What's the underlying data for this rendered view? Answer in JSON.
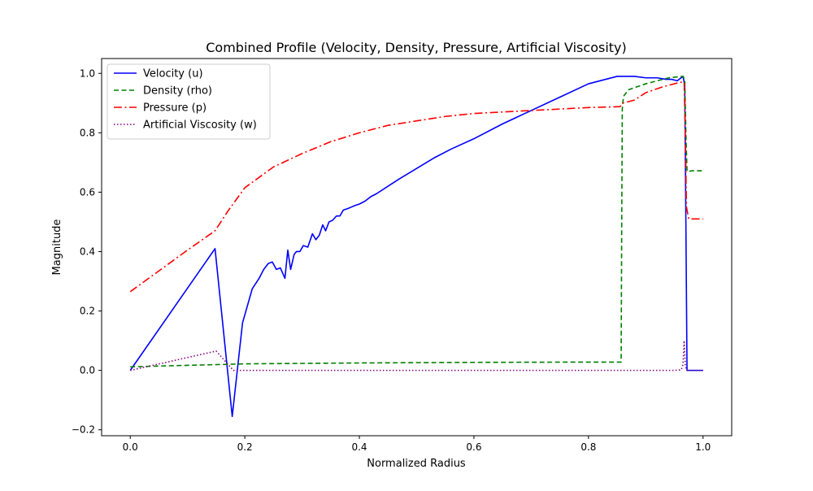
{
  "chart_data": {
    "type": "line",
    "title": "Combined Profile (Velocity, Density, Pressure, Artificial Viscosity)",
    "xlabel": "Normalized Radius",
    "ylabel": "Magnitude",
    "xlim": [
      -0.05,
      1.05
    ],
    "ylim": [
      -0.22,
      1.05
    ],
    "xticks": [
      0.0,
      0.2,
      0.4,
      0.6,
      0.8,
      1.0
    ],
    "xtick_labels": [
      "0.0",
      "0.2",
      "0.4",
      "0.6",
      "0.8",
      "1.0"
    ],
    "yticks": [
      -0.2,
      0.0,
      0.2,
      0.4,
      0.6,
      0.8,
      1.0
    ],
    "ytick_labels": [
      "−0.2",
      "0.0",
      "0.2",
      "0.4",
      "0.6",
      "0.8",
      "1.0"
    ],
    "grid": false,
    "legend_position": "top-left",
    "series": [
      {
        "name": "Velocity (u)",
        "color": "#0000ff",
        "style": "solid",
        "x": [
          0.0,
          0.148,
          0.178,
          0.196,
          0.213,
          0.225,
          0.233,
          0.241,
          0.248,
          0.255,
          0.262,
          0.27,
          0.275,
          0.28,
          0.286,
          0.29,
          0.296,
          0.302,
          0.31,
          0.318,
          0.324,
          0.33,
          0.336,
          0.341,
          0.347,
          0.353,
          0.36,
          0.366,
          0.372,
          0.38,
          0.386,
          0.392,
          0.4,
          0.41,
          0.42,
          0.43,
          0.45,
          0.47,
          0.5,
          0.53,
          0.56,
          0.6,
          0.65,
          0.7,
          0.75,
          0.8,
          0.85,
          0.88,
          0.9,
          0.92,
          0.935,
          0.945,
          0.955,
          0.965,
          0.968,
          0.97,
          0.972,
          0.975,
          1.0
        ],
        "y": [
          0.0,
          0.41,
          -0.155,
          0.16,
          0.275,
          0.31,
          0.34,
          0.36,
          0.365,
          0.34,
          0.345,
          0.31,
          0.405,
          0.34,
          0.39,
          0.4,
          0.4,
          0.42,
          0.415,
          0.46,
          0.44,
          0.455,
          0.49,
          0.47,
          0.5,
          0.505,
          0.52,
          0.52,
          0.54,
          0.545,
          0.55,
          0.555,
          0.56,
          0.57,
          0.585,
          0.595,
          0.62,
          0.645,
          0.68,
          0.715,
          0.745,
          0.78,
          0.83,
          0.875,
          0.92,
          0.965,
          0.99,
          0.99,
          0.985,
          0.985,
          0.98,
          0.98,
          0.975,
          0.99,
          0.96,
          0.5,
          0.0,
          0.0,
          0.0
        ]
      },
      {
        "name": "Density (rho)",
        "color": "#008000",
        "style": "dashed",
        "x": [
          0.0,
          0.2,
          0.4,
          0.6,
          0.8,
          0.857,
          0.858,
          0.859,
          0.86,
          0.862,
          0.87,
          0.9,
          0.94,
          0.965,
          0.968,
          0.97,
          0.972,
          0.975,
          0.98,
          1.0
        ],
        "y": [
          0.012,
          0.022,
          0.025,
          0.027,
          0.028,
          0.028,
          0.5,
          0.88,
          0.905,
          0.925,
          0.945,
          0.965,
          0.985,
          0.99,
          0.98,
          0.8,
          0.67,
          0.67,
          0.672,
          0.672
        ],
        "dash": "6,3.5"
      },
      {
        "name": "Pressure (p)",
        "color": "#ff0000",
        "style": "dashdot",
        "x": [
          0.0,
          0.05,
          0.1,
          0.148,
          0.17,
          0.2,
          0.25,
          0.3,
          0.35,
          0.4,
          0.45,
          0.5,
          0.55,
          0.6,
          0.65,
          0.7,
          0.75,
          0.8,
          0.855,
          0.86,
          0.88,
          0.9,
          0.93,
          0.96,
          0.967,
          0.969,
          0.971,
          0.975,
          0.98,
          1.0
        ],
        "y": [
          0.265,
          0.335,
          0.405,
          0.47,
          0.535,
          0.615,
          0.685,
          0.73,
          0.77,
          0.8,
          0.825,
          0.84,
          0.855,
          0.865,
          0.87,
          0.875,
          0.88,
          0.885,
          0.888,
          0.9,
          0.91,
          0.935,
          0.955,
          0.97,
          0.97,
          0.8,
          0.55,
          0.51,
          0.51,
          0.51
        ],
        "dash": "10,3.5,2,3.5"
      },
      {
        "name": "Artificial Viscosity (w)",
        "color": "#800080",
        "style": "dotted",
        "x": [
          0.0,
          0.15,
          0.18,
          0.3,
          0.5,
          0.7,
          0.9,
          0.95,
          0.962,
          0.965,
          0.967,
          0.969,
          0.971,
          1.0
        ],
        "y": [
          0.0,
          0.065,
          0.0,
          0.0,
          0.0,
          0.0,
          0.0,
          0.0,
          0.002,
          0.02,
          0.1,
          0.02,
          0.0,
          0.0
        ],
        "dash": "1.5,2.5"
      }
    ]
  }
}
